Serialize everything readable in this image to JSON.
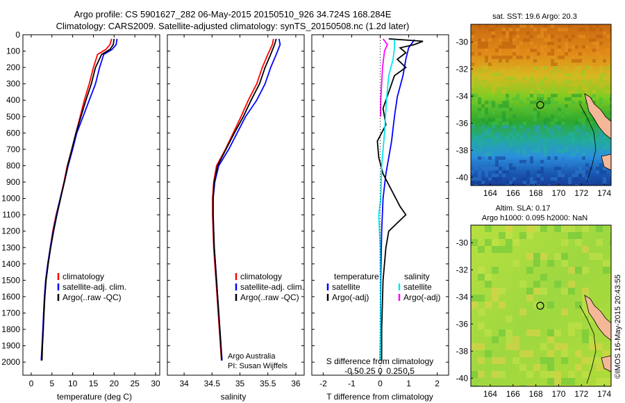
{
  "header": {
    "line1": "Argo profile: CS 5901627_282 06-May-2015 20150510_926 34.724S 168.284E",
    "line2": "Climatology: CARS2009. Satellite-adjusted climatology: synTS_20150508.nc (1.2d later)"
  },
  "side_stamp": "©IMOS 16-May-2015 20:43:55",
  "colors": {
    "climatology": "#ff0000",
    "satellite": "#0000ff",
    "argo": "#000000",
    "s_satellite": "#00e5ee",
    "s_argo": "#ff00ff",
    "frame": "#000000"
  },
  "chart_data": [
    {
      "id": "temperature",
      "type": "line",
      "xlabel": "temperature (deg C)",
      "ylabel": "",
      "xlim": [
        -2,
        31
      ],
      "ylim": [
        2080,
        0
      ],
      "xticks": [
        0,
        5,
        10,
        15,
        20,
        25,
        30
      ],
      "yticks": [
        0,
        100,
        200,
        300,
        400,
        500,
        600,
        700,
        800,
        900,
        1000,
        1100,
        1200,
        1300,
        1400,
        1500,
        1600,
        1700,
        1800,
        1900,
        2000
      ],
      "legend": {
        "position": "lower-right",
        "entries": [
          "climatology",
          "satellite-adj. clim.",
          "Argo(..raw -QC)"
        ]
      },
      "series": [
        {
          "name": "climatology",
          "color": "#ff0000",
          "points": [
            [
              19.4,
              25
            ],
            [
              19.0,
              60
            ],
            [
              18.0,
              90
            ],
            [
              16.0,
              120
            ],
            [
              15.0,
              200
            ],
            [
              14.0,
              300
            ],
            [
              12.8,
              400
            ],
            [
              11.8,
              500
            ],
            [
              10.8,
              600
            ],
            [
              9.8,
              700
            ],
            [
              8.7,
              800
            ],
            [
              7.9,
              900
            ],
            [
              7.0,
              1000
            ],
            [
              6.0,
              1100
            ],
            [
              5.2,
              1200
            ],
            [
              4.6,
              1300
            ],
            [
              4.0,
              1400
            ],
            [
              3.5,
              1500
            ],
            [
              3.2,
              1600
            ],
            [
              3.0,
              1700
            ],
            [
              2.9,
              1800
            ],
            [
              2.7,
              1900
            ],
            [
              2.5,
              1990
            ]
          ]
        },
        {
          "name": "satellite-adj. clim.",
          "color": "#0000ff",
          "points": [
            [
              20.7,
              25
            ],
            [
              20.5,
              60
            ],
            [
              19.5,
              90
            ],
            [
              17.5,
              120
            ],
            [
              16.5,
              200
            ],
            [
              15.5,
              300
            ],
            [
              14.0,
              400
            ],
            [
              12.5,
              500
            ],
            [
              11.0,
              600
            ],
            [
              10.0,
              700
            ],
            [
              8.9,
              800
            ],
            [
              8.0,
              900
            ],
            [
              7.0,
              1000
            ],
            [
              6.1,
              1100
            ],
            [
              5.3,
              1200
            ],
            [
              4.6,
              1300
            ],
            [
              4.0,
              1400
            ],
            [
              3.5,
              1500
            ],
            [
              3.2,
              1600
            ],
            [
              3.0,
              1700
            ],
            [
              2.8,
              1800
            ],
            [
              2.6,
              1900
            ],
            [
              2.4,
              1990
            ]
          ]
        },
        {
          "name": "Argo(..raw -QC)",
          "color": "#000000",
          "points": [
            [
              20.0,
              25
            ],
            [
              19.8,
              60
            ],
            [
              19.0,
              90
            ],
            [
              17.0,
              120
            ],
            [
              15.5,
              200
            ],
            [
              14.5,
              300
            ],
            [
              13.2,
              400
            ],
            [
              12.0,
              500
            ],
            [
              10.8,
              600
            ],
            [
              9.8,
              700
            ],
            [
              8.8,
              800
            ],
            [
              8.0,
              900
            ],
            [
              7.1,
              1000
            ],
            [
              6.2,
              1100
            ],
            [
              5.4,
              1200
            ],
            [
              4.7,
              1300
            ],
            [
              4.1,
              1400
            ],
            [
              3.6,
              1500
            ],
            [
              3.3,
              1600
            ],
            [
              3.1,
              1700
            ],
            [
              2.9,
              1800
            ],
            [
              2.7,
              1900
            ],
            [
              2.6,
              1990
            ]
          ]
        }
      ]
    },
    {
      "id": "salinity",
      "type": "line",
      "xlabel": "salinity",
      "ylabel": "",
      "xlim": [
        33.7,
        36.15
      ],
      "ylim": [
        2080,
        0
      ],
      "xticks": [
        34,
        34.5,
        35,
        35.5,
        36
      ],
      "legend": {
        "position": "lower-right",
        "entries": [
          "climatology",
          "satellite-adj. clim.",
          "Argo(..raw -QC)"
        ]
      },
      "annotation": [
        "Argo Australia",
        "PI: Susan Wijffels"
      ],
      "series": [
        {
          "name": "climatology",
          "color": "#ff0000",
          "points": [
            [
              35.6,
              25
            ],
            [
              35.58,
              60
            ],
            [
              35.5,
              120
            ],
            [
              35.4,
              200
            ],
            [
              35.3,
              300
            ],
            [
              35.15,
              400
            ],
            [
              35.02,
              500
            ],
            [
              34.88,
              600
            ],
            [
              34.74,
              700
            ],
            [
              34.58,
              800
            ],
            [
              34.53,
              900
            ],
            [
              34.51,
              1000
            ],
            [
              34.51,
              1100
            ],
            [
              34.52,
              1200
            ],
            [
              34.53,
              1300
            ],
            [
              34.55,
              1400
            ],
            [
              34.57,
              1500
            ],
            [
              34.59,
              1600
            ],
            [
              34.61,
              1700
            ],
            [
              34.63,
              1800
            ],
            [
              34.65,
              1900
            ],
            [
              34.67,
              1990
            ]
          ]
        },
        {
          "name": "satellite-adj. clim.",
          "color": "#0000ff",
          "points": [
            [
              35.7,
              25
            ],
            [
              35.72,
              60
            ],
            [
              35.65,
              120
            ],
            [
              35.55,
              200
            ],
            [
              35.45,
              300
            ],
            [
              35.3,
              400
            ],
            [
              35.1,
              500
            ],
            [
              34.95,
              600
            ],
            [
              34.8,
              700
            ],
            [
              34.62,
              800
            ],
            [
              34.55,
              900
            ],
            [
              34.52,
              1000
            ],
            [
              34.52,
              1100
            ],
            [
              34.53,
              1200
            ],
            [
              34.54,
              1300
            ],
            [
              34.56,
              1400
            ],
            [
              34.58,
              1500
            ],
            [
              34.6,
              1600
            ],
            [
              34.62,
              1700
            ],
            [
              34.64,
              1800
            ],
            [
              34.66,
              1900
            ],
            [
              34.68,
              1990
            ]
          ]
        },
        {
          "name": "Argo(..raw -QC)",
          "color": "#000000",
          "points": [
            [
              35.65,
              25
            ],
            [
              35.62,
              60
            ],
            [
              35.55,
              120
            ],
            [
              35.45,
              200
            ],
            [
              35.35,
              300
            ],
            [
              35.2,
              400
            ],
            [
              35.06,
              500
            ],
            [
              34.9,
              600
            ],
            [
              34.75,
              700
            ],
            [
              34.6,
              800
            ],
            [
              34.54,
              900
            ],
            [
              34.52,
              1000
            ],
            [
              34.52,
              1100
            ],
            [
              34.53,
              1200
            ],
            [
              34.54,
              1300
            ],
            [
              34.56,
              1400
            ],
            [
              34.58,
              1500
            ],
            [
              34.6,
              1600
            ],
            [
              34.62,
              1700
            ],
            [
              34.64,
              1800
            ],
            [
              34.66,
              1900
            ],
            [
              34.67,
              1990
            ]
          ]
        }
      ]
    },
    {
      "id": "difference",
      "type": "line",
      "xlabel": "T difference from climatology",
      "xlabel_top": "S difference from climatology",
      "xlim": [
        -2.4,
        2.4
      ],
      "ylim": [
        2080,
        0
      ],
      "xticks": [
        -2,
        -1,
        0,
        1,
        2
      ],
      "xticklabels": [
        "-2",
        "-1",
        "0",
        "1",
        "2"
      ],
      "sticks": [
        -0.5,
        -0.25,
        0,
        0.25,
        0.5
      ],
      "sticklabels": [
        "-0.5",
        "-0.25",
        "0",
        "0.25",
        "0.5"
      ],
      "legend": {
        "position": "lower-middle",
        "groups": [
          {
            "title": "temperature",
            "entries": [
              "satellite",
              "Argo(-adj)"
            ]
          },
          {
            "title": "salinity",
            "entries": [
              "satellite",
              "Argo(-adj)"
            ]
          }
        ]
      },
      "series": [
        {
          "name": "temperature satellite",
          "color": "#0000ff",
          "points": [
            [
              1.2,
              30
            ],
            [
              1.0,
              80
            ],
            [
              0.9,
              150
            ],
            [
              0.8,
              250
            ],
            [
              0.6,
              380
            ],
            [
              0.5,
              500
            ],
            [
              0.4,
              650
            ],
            [
              0.3,
              750
            ],
            [
              0.2,
              850
            ],
            [
              0.1,
              1000
            ],
            [
              0.05,
              1200
            ],
            [
              0.02,
              1500
            ],
            [
              0.01,
              1800
            ],
            [
              0.0,
              1990
            ]
          ]
        },
        {
          "name": "temperature Argo(-adj)",
          "color": "#000000",
          "points": [
            [
              0.3,
              25
            ],
            [
              1.5,
              40
            ],
            [
              1.2,
              60
            ],
            [
              0.7,
              80
            ],
            [
              0.9,
              110
            ],
            [
              0.6,
              150
            ],
            [
              0.9,
              200
            ],
            [
              0.5,
              250
            ],
            [
              0.3,
              350
            ],
            [
              0.1,
              450
            ],
            [
              0.2,
              550
            ],
            [
              -0.1,
              650
            ],
            [
              -0.05,
              750
            ],
            [
              0.1,
              850
            ],
            [
              0.4,
              950
            ],
            [
              0.7,
              1050
            ],
            [
              0.9,
              1100
            ],
            [
              0.6,
              1150
            ],
            [
              0.3,
              1200
            ],
            [
              0.2,
              1300
            ],
            [
              0.1,
              1500
            ],
            [
              0.05,
              1800
            ],
            [
              0.05,
              1990
            ]
          ]
        },
        {
          "name": "salinity satellite",
          "color": "#00e5ee",
          "points": [
            [
              0.5,
              30
            ],
            [
              0.5,
              80
            ],
            [
              0.45,
              150
            ],
            [
              0.3,
              250
            ],
            [
              0.22,
              400
            ],
            [
              0.15,
              600
            ],
            [
              0.05,
              800
            ],
            [
              0.02,
              1000
            ],
            [
              -0.05,
              1100
            ],
            [
              0.0,
              1300
            ],
            [
              0.01,
              1600
            ],
            [
              0.01,
              1990
            ]
          ]
        },
        {
          "name": "salinity Argo(-adj)",
          "color": "#ff00ff",
          "points": [
            [
              0.1,
              25
            ],
            [
              0.25,
              60
            ],
            [
              0.15,
              100
            ],
            [
              0.08,
              200
            ],
            [
              0.05,
              300
            ],
            [
              0.02,
              400
            ],
            [
              0.01,
              500
            ]
          ]
        }
      ]
    },
    {
      "id": "sst_map",
      "type": "heatmap",
      "title": "sat. SST: 19.6 Argo: 20.3",
      "xticks": [
        164,
        166,
        168,
        170,
        172,
        174
      ],
      "yticks": [
        -30,
        -32,
        -34,
        -36,
        -38,
        -40
      ],
      "xlim": [
        162.3,
        174.6
      ],
      "ylim": [
        -40.6,
        -28.7
      ],
      "argo_position": [
        168.284,
        -34.724
      ]
    },
    {
      "id": "sla_map",
      "type": "heatmap",
      "title_line1": "Altim. SLA: 0.17",
      "title_line2": "Argo h1000: 0.095 h2000: NaN",
      "xticks": [
        164,
        166,
        168,
        170,
        172,
        174
      ],
      "yticks": [
        -30,
        -32,
        -34,
        -36,
        -38,
        -40
      ],
      "xlim": [
        162.3,
        174.6
      ],
      "ylim": [
        -40.6,
        -28.7
      ],
      "argo_position": [
        168.284,
        -34.724
      ]
    }
  ]
}
